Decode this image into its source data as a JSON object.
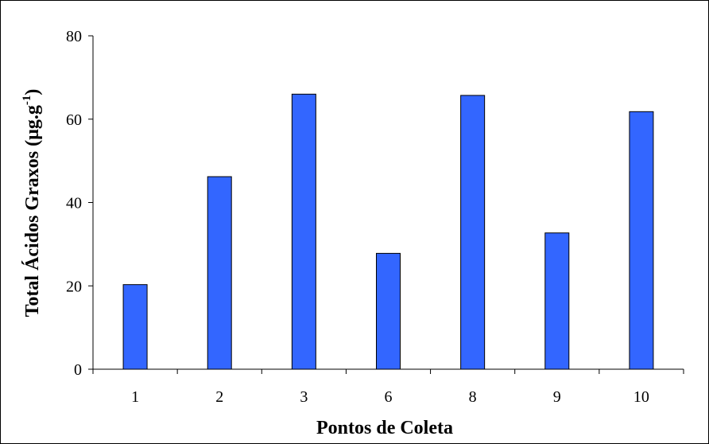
{
  "chart_data": {
    "type": "bar",
    "title": "",
    "xlabel": "Pontos de Coleta",
    "ylabel_main": "Total Ácidos Graxos (µg.g",
    "ylabel_sup": "-1",
    "ylabel_close": ")",
    "categories": [
      "1",
      "2",
      "3",
      "6",
      "8",
      "9",
      "10"
    ],
    "values": [
      20.3,
      46.2,
      66.0,
      27.8,
      65.7,
      32.7,
      61.8
    ],
    "ylim": [
      0,
      80
    ],
    "yticks": [
      "0",
      "20",
      "40",
      "60",
      "80"
    ],
    "bar_color": "#3366ff",
    "bar_stroke": "#000000",
    "grid": false,
    "legend": "none"
  }
}
